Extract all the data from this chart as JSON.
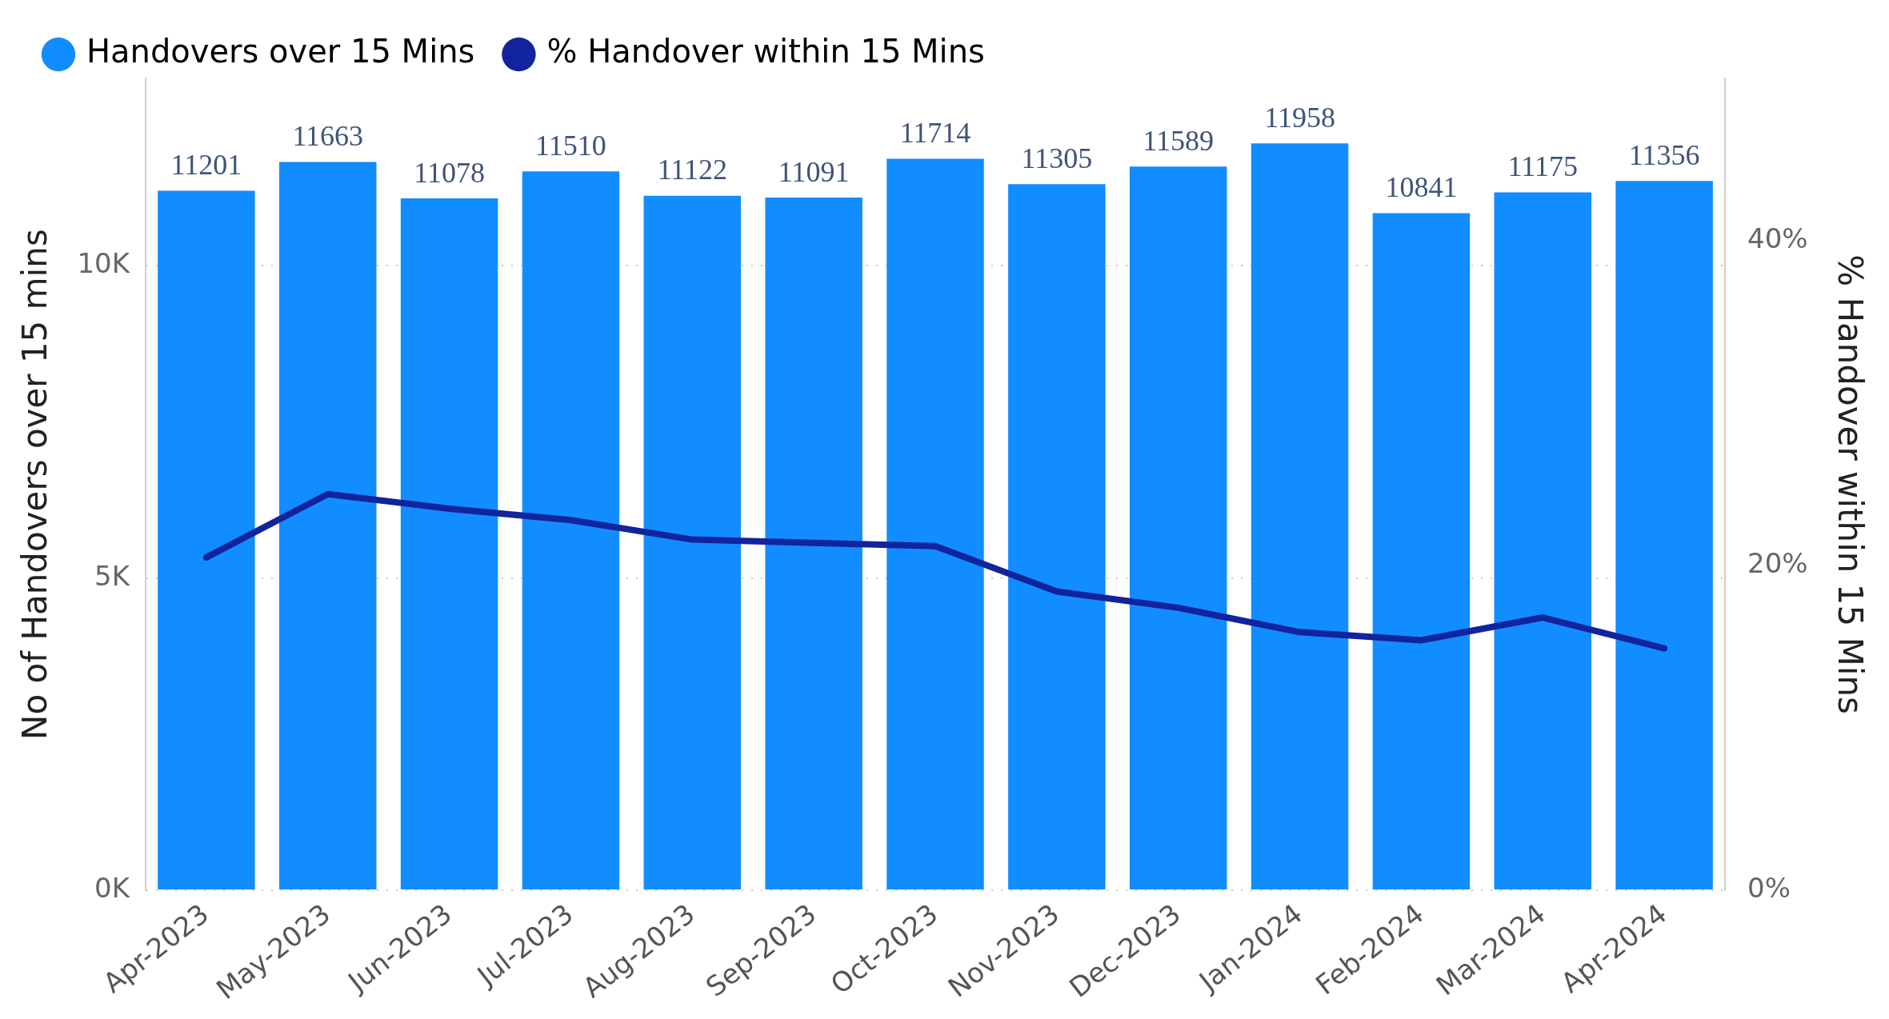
{
  "chart_data": {
    "type": "bar",
    "xlabel": null,
    "ylabel": "No of Handovers over 15 mins",
    "y2label": "% Handover within 15 Mins",
    "categories": [
      "Apr-2023",
      "May-2023",
      "Jun-2023",
      "Jul-2023",
      "Aug-2023",
      "Sep-2023",
      "Oct-2023",
      "Nov-2023",
      "Dec-2023",
      "Jan-2024",
      "Feb-2024",
      "Mar-2024",
      "Apr-2024"
    ],
    "series": [
      {
        "name": "Handovers over 15 Mins",
        "color": "#118dff",
        "values": [
          11201,
          11663,
          11078,
          11510,
          11122,
          11091,
          11714,
          11305,
          11589,
          11958,
          10841,
          11175,
          11356
        ],
        "value_labels": [
          "11201",
          "11663",
          "11078",
          "11510",
          "11122",
          "11091",
          "11714",
          "11305",
          "11589",
          "11958",
          "10841",
          "11175",
          "11356"
        ]
      },
      {
        "name": "% Handover within 15 Mins",
        "type": "line",
        "axis": "y2",
        "color": "#12239e",
        "values": [
          20.5,
          24.4,
          23.5,
          22.8,
          21.6,
          21.4,
          21.2,
          18.4,
          17.4,
          15.9,
          15.4,
          16.8,
          14.9
        ]
      }
    ],
    "ylim": [
      0,
      13000
    ],
    "yticks": [
      {
        "value": 0,
        "label": "0K"
      },
      {
        "value": 5000,
        "label": "5K"
      },
      {
        "value": 10000,
        "label": "10K"
      }
    ],
    "y2lim": [
      0,
      50
    ],
    "y2ticks": [
      {
        "value": 0,
        "label": "0%"
      },
      {
        "value": 20,
        "label": "20%"
      },
      {
        "value": 40,
        "label": "40%"
      }
    ],
    "grid": "y",
    "legend": "top left",
    "marker": "none"
  }
}
